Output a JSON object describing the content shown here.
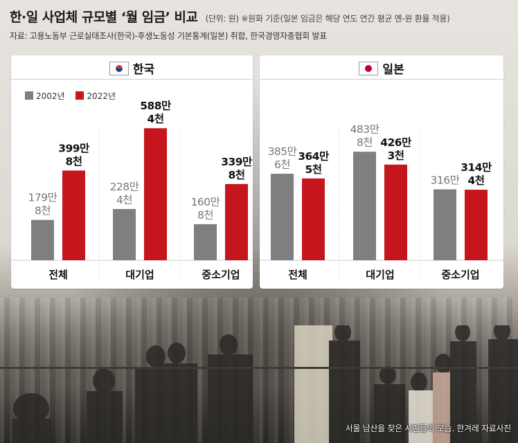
{
  "header": {
    "title": "한·일 사업체 규모별 ‘월 임금’ 비교",
    "note": "(단위: 원) ※원화 기준(일본 임금은 해당 연도 연간 평균 엔-원 환율 적용)",
    "source": "자료: 고용노동부 근로실태조사(한국)-후생노동성 기본통계(일본) 취합, 한국경영자총협회 발표"
  },
  "colors": {
    "y2002": "#7f7f7f",
    "y2022": "#c4161c"
  },
  "chart_data": [
    {
      "type": "bar",
      "panel": "korea",
      "title": "한국",
      "categories": [
        "전체",
        "대기업",
        "중소기업"
      ],
      "series": [
        {
          "name": "2002년",
          "values": [
            179.8,
            228.4,
            160.8
          ],
          "labels": [
            [
              "179만",
              "8천"
            ],
            [
              "228만",
              "4천"
            ],
            [
              "160만",
              "8천"
            ]
          ]
        },
        {
          "name": "2022년",
          "values": [
            399.8,
            588.4,
            339.8
          ],
          "labels": [
            [
              "399만",
              "8천"
            ],
            [
              "588만",
              "4천"
            ],
            [
              "339만",
              "8천"
            ]
          ]
        }
      ],
      "legend": "top-left",
      "ylabel": "",
      "ylim": [
        0,
        620
      ]
    },
    {
      "type": "bar",
      "panel": "japan",
      "title": "일본",
      "categories": [
        "전체",
        "대기업",
        "중소기업"
      ],
      "series": [
        {
          "name": "2002년",
          "values": [
            385.6,
            483.8,
            316.0
          ],
          "labels": [
            [
              "385만",
              "6천"
            ],
            [
              "483만",
              "8천"
            ],
            [
              "316만"
            ]
          ]
        },
        {
          "name": "2022년",
          "values": [
            364.5,
            426.3,
            314.4
          ],
          "labels": [
            [
              "364만",
              "5천"
            ],
            [
              "426만",
              "3천"
            ],
            [
              "314만",
              "4천"
            ]
          ]
        }
      ],
      "legend": "none",
      "ylabel": "",
      "ylim": [
        0,
        620
      ]
    }
  ],
  "photo_caption": "서울 남산을 찾은 시민들의 모습. 한겨레 자료사진"
}
